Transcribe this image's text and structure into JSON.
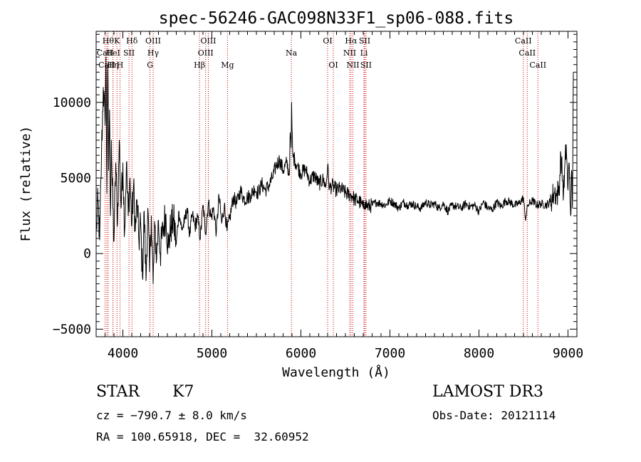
{
  "chart_data": {
    "type": "line",
    "title": "spec-56246-GAC098N33F1_sp06-088.fits",
    "xlabel": "Wavelength (Å)",
    "ylabel": "Flux (relative)",
    "xlim": [
      3700,
      9100
    ],
    "ylim": [
      -5500,
      14700
    ],
    "xticks": [
      4000,
      5000,
      6000,
      7000,
      8000,
      9000
    ],
    "xtick_labels": [
      "4000",
      "5000",
      "6000",
      "7000",
      "8000",
      "9000"
    ],
    "yticks": [
      -5000,
      0,
      5000,
      10000
    ],
    "ytick_labels": [
      "−5000",
      "0",
      "5000",
      "10000"
    ],
    "grid": false,
    "line_color": "#000000",
    "marker_color": "#cc0000",
    "series": [
      {
        "name": "flux",
        "x": [
          3700,
          3720,
          3740,
          3760,
          3780,
          3800,
          3810,
          3820,
          3830,
          3840,
          3850,
          3860,
          3870,
          3880,
          3900,
          3920,
          3940,
          3960,
          3980,
          4000,
          4020,
          4040,
          4060,
          4080,
          4100,
          4120,
          4140,
          4160,
          4180,
          4200,
          4220,
          4240,
          4260,
          4280,
          4300,
          4320,
          4340,
          4360,
          4380,
          4400,
          4420,
          4450,
          4480,
          4510,
          4540,
          4570,
          4600,
          4630,
          4660,
          4690,
          4720,
          4750,
          4780,
          4810,
          4840,
          4870,
          4900,
          4930,
          4960,
          4990,
          5020,
          5050,
          5080,
          5110,
          5140,
          5170,
          5200,
          5240,
          5280,
          5320,
          5360,
          5400,
          5440,
          5480,
          5520,
          5560,
          5600,
          5640,
          5680,
          5720,
          5760,
          5800,
          5840,
          5870,
          5880,
          5890,
          5895,
          5900,
          5910,
          5930,
          5960,
          6000,
          6050,
          6100,
          6150,
          6200,
          6250,
          6280,
          6300,
          6320,
          6350,
          6400,
          6450,
          6500,
          6550,
          6580,
          6600,
          6640,
          6680,
          6700,
          6720,
          6750,
          6800,
          6850,
          6900,
          6950,
          7000,
          7050,
          7100,
          7150,
          7200,
          7250,
          7300,
          7350,
          7400,
          7450,
          7500,
          7550,
          7600,
          7650,
          7700,
          7750,
          7800,
          7850,
          7900,
          7950,
          8000,
          8050,
          8100,
          8150,
          8200,
          8250,
          8300,
          8350,
          8400,
          8450,
          8500,
          8520,
          8550,
          8600,
          8650,
          8700,
          8750,
          8800,
          8850,
          8870,
          8900,
          8920,
          8950,
          8980,
          9000,
          9010,
          9020,
          9030,
          9040,
          9050,
          9060
        ],
        "y": [
          1200,
          3500,
          900,
          6500,
          11000,
          8500,
          13000,
          4000,
          12500,
          5500,
          9500,
          2500,
          7500,
          4500,
          800,
          6000,
          2000,
          7500,
          3000,
          6000,
          1500,
          6000,
          2500,
          5000,
          1800,
          4500,
          1500,
          3500,
          800,
          2000,
          -1500,
          2800,
          -1800,
          3000,
          -1200,
          2500,
          -2000,
          1800,
          -300,
          2200,
          0,
          1500,
          2600,
          400,
          1800,
          2200,
          600,
          2800,
          1600,
          2000,
          3000,
          1200,
          2600,
          1800,
          2400,
          1000,
          3200,
          1400,
          3400,
          2400,
          3000,
          1400,
          3800,
          2000,
          3200,
          1500,
          2300,
          3700,
          3300,
          4200,
          3600,
          3700,
          3900,
          4300,
          4000,
          4600,
          4200,
          4500,
          5000,
          5800,
          6200,
          5500,
          6000,
          5200,
          8000,
          7000,
          10000,
          8200,
          6400,
          6200,
          5800,
          5300,
          5600,
          4800,
          5200,
          4600,
          4900,
          4400,
          5800,
          4300,
          4500,
          4200,
          4300,
          4000,
          3900,
          3800,
          3600,
          3500,
          3300,
          3000,
          3400,
          3100,
          3200,
          3400,
          3300,
          3200,
          3500,
          3300,
          3000,
          3400,
          3200,
          3300,
          3100,
          3000,
          3400,
          3200,
          3300,
          3000,
          3300,
          2800,
          3200,
          3100,
          3000,
          3300,
          3100,
          3200,
          2800,
          3400,
          3000,
          2900,
          3400,
          3100,
          3500,
          3400,
          3200,
          3300,
          3700,
          2300,
          3200,
          3500,
          3200,
          3300,
          3200,
          3400,
          4100,
          3800,
          4300,
          6500,
          4000,
          7200,
          4200,
          6000,
          4500,
          2500,
          5500,
          3000,
          12000
        ]
      }
    ],
    "lines": [
      {
        "label": "CaII",
        "wave": 3800,
        "row": 1
      },
      {
        "label": "CaII",
        "wave": 3820,
        "row": 2
      },
      {
        "label": "Hθ",
        "wave": 3835,
        "row": 0
      },
      {
        "label": "Hη",
        "wave": 3889,
        "row": 2
      },
      {
        "label": "HeI",
        "wave": 3889,
        "row": 1
      },
      {
        "label": "K",
        "wave": 3934,
        "row": 0
      },
      {
        "label": "H",
        "wave": 3968,
        "row": 2
      },
      {
        "label": "SII",
        "wave": 4069,
        "row": 1
      },
      {
        "label": "Hδ",
        "wave": 4102,
        "row": 0
      },
      {
        "label": "OIII",
        "wave": 4340,
        "row": 0
      },
      {
        "label": "Hγ",
        "wave": 4340,
        "row": 1
      },
      {
        "label": "G",
        "wave": 4305,
        "row": 2
      },
      {
        "label": "OIII",
        "wave": 4960,
        "row": 0
      },
      {
        "label": "OIII",
        "wave": 4930,
        "row": 1
      },
      {
        "label": "Hβ",
        "wave": 4861,
        "row": 2
      },
      {
        "label": "Mg",
        "wave": 5175,
        "row": 2
      },
      {
        "label": "Na",
        "wave": 5893,
        "row": 1
      },
      {
        "label": "OI",
        "wave": 6300,
        "row": 0
      },
      {
        "label": "OI",
        "wave": 6364,
        "row": 2
      },
      {
        "label": "Hα",
        "wave": 6563,
        "row": 0
      },
      {
        "label": "NII",
        "wave": 6548,
        "row": 1
      },
      {
        "label": "NII",
        "wave": 6584,
        "row": 2
      },
      {
        "label": "SII",
        "wave": 6716,
        "row": 0
      },
      {
        "label": "Li",
        "wave": 6708,
        "row": 1
      },
      {
        "label": "SII",
        "wave": 6731,
        "row": 2
      },
      {
        "label": "CaII",
        "wave": 8498,
        "row": 0
      },
      {
        "label": "CaII",
        "wave": 8542,
        "row": 1
      },
      {
        "label": "CaII",
        "wave": 8662,
        "row": 2
      }
    ]
  },
  "info": {
    "object_class": "STAR",
    "subclass": "K7",
    "survey": "LAMOST DR3",
    "redshift_line": "cz = −790.7 ± 8.0 km/s",
    "obs_date_line": "Obs-Date: 20121114",
    "coords_line": "RA = 100.65918, DEC =  32.60952"
  }
}
